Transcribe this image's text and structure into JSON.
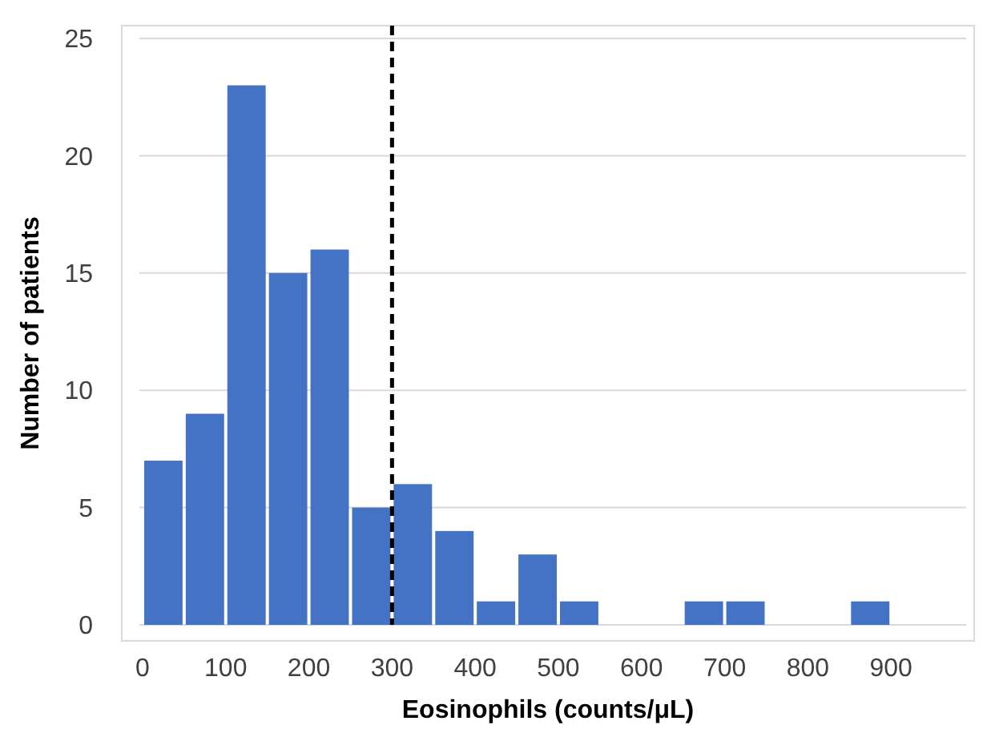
{
  "chart_data": {
    "type": "histogram",
    "xlabel": "Eosinophils (counts/μL)",
    "ylabel": "Number of patients",
    "bins": [
      0,
      50,
      100,
      150,
      200,
      250,
      300,
      350,
      400,
      450,
      500,
      550,
      600,
      650,
      700,
      750,
      800,
      850,
      900
    ],
    "values": [
      7,
      9,
      23,
      15,
      16,
      5,
      6,
      4,
      1,
      3,
      1,
      0,
      0,
      1,
      1,
      0,
      0,
      1
    ],
    "color": "#4472c4",
    "xlim": [
      -25,
      1000
    ],
    "xticks": [
      0,
      100,
      200,
      300,
      400,
      500,
      600,
      700,
      800,
      900
    ],
    "ylim": [
      0,
      25
    ],
    "yticks": [
      0,
      5,
      10,
      15,
      20,
      25
    ],
    "grid": "y",
    "ref_lines": [
      {
        "axis": "x",
        "value": 300,
        "color": "#000000",
        "line_style": "dashed"
      }
    ]
  }
}
